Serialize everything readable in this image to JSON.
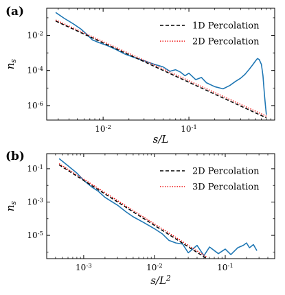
{
  "chart_data": [
    {
      "type": "line",
      "panel_label": "(a)",
      "xlabel": "s/L",
      "ylabel": "n_s",
      "xscale": "log",
      "yscale": "log",
      "xlim": [
        0.0022,
        1.0
      ],
      "ylim": [
        1.5e-07,
        0.35
      ],
      "x_ticks": [
        {
          "value": 0.01,
          "label": "10^{-2}"
        },
        {
          "value": 0.1,
          "label": "10^{-1}"
        }
      ],
      "y_ticks": [
        {
          "value": 0.01,
          "label": "10^{-2}"
        },
        {
          "value": 0.0001,
          "label": "10^{-4}"
        },
        {
          "value": 1e-06,
          "label": "10^{-6}"
        }
      ],
      "legend_position": "top-right",
      "series": [
        {
          "name": "",
          "style": "solid",
          "color": "#1f77b4",
          "x": [
            0.0028,
            0.0035,
            0.0045,
            0.0055,
            0.0065,
            0.0075,
            0.009,
            0.011,
            0.014,
            0.018,
            0.023,
            0.03,
            0.04,
            0.05,
            0.06,
            0.07,
            0.08,
            0.09,
            0.1,
            0.12,
            0.14,
            0.16,
            0.2,
            0.25,
            0.3,
            0.35,
            0.4,
            0.45,
            0.5,
            0.55,
            0.6,
            0.63,
            0.66,
            0.7,
            0.73,
            0.76,
            0.78,
            0.8
          ],
          "y": [
            0.2,
            0.095,
            0.045,
            0.023,
            0.011,
            0.0055,
            0.0038,
            0.0027,
            0.0016,
            0.00085,
            0.00055,
            0.00036,
            0.00022,
            0.00016,
            9e-05,
            0.00011,
            8e-05,
            5e-05,
            7e-05,
            3e-05,
            4e-05,
            2e-05,
            1.2e-05,
            9e-06,
            1.4e-05,
            2.4e-05,
            3.6e-05,
            6e-05,
            0.00011,
            0.0002,
            0.00036,
            0.00048,
            0.00042,
            0.00022,
            5e-05,
            4e-06,
            1e-06,
            3e-07
          ]
        },
        {
          "name": "1D Percolation",
          "style": "dashed",
          "color": "#000000",
          "x": [
            0.0028,
            0.8
          ],
          "y": [
            0.065,
            2e-07
          ]
        },
        {
          "name": "2D Percolation",
          "style": "dotted",
          "color": "#ee1111",
          "x": [
            0.0028,
            0.8
          ],
          "y": [
            0.075,
            2.5e-07
          ]
        }
      ]
    },
    {
      "type": "line",
      "panel_label": "(b)",
      "xlabel": "s/L^2",
      "ylabel": "n_s",
      "xscale": "log",
      "yscale": "log",
      "xlim": [
        0.0003,
        0.5
      ],
      "ylim": [
        4e-07,
        0.8
      ],
      "x_ticks": [
        {
          "value": 0.001,
          "label": "10^{-3}"
        },
        {
          "value": 0.01,
          "label": "10^{-2}"
        },
        {
          "value": 0.1,
          "label": "10^{-1}"
        }
      ],
      "y_ticks": [
        {
          "value": 0.1,
          "label": "10^{-1}"
        },
        {
          "value": 0.001,
          "label": "10^{-3}"
        },
        {
          "value": 1e-05,
          "label": "10^{-5}"
        }
      ],
      "legend_position": "top-right",
      "series": [
        {
          "name": "",
          "style": "solid",
          "color": "#1f77b4",
          "x": [
            0.00045,
            0.0006,
            0.0008,
            0.001,
            0.0013,
            0.0016,
            0.002,
            0.003,
            0.004,
            0.005,
            0.007,
            0.01,
            0.013,
            0.016,
            0.02,
            0.025,
            0.03,
            0.04,
            0.05,
            0.06,
            0.08,
            0.1,
            0.12,
            0.15,
            0.18,
            0.2,
            0.22,
            0.25,
            0.28
          ],
          "y": [
            0.4,
            0.15,
            0.055,
            0.02,
            0.008,
            0.0045,
            0.0019,
            0.00065,
            0.00025,
            0.00013,
            6e-05,
            2.5e-05,
            1.2e-05,
            5e-06,
            3.5e-06,
            3e-06,
            9e-07,
            2.5e-06,
            6e-07,
            2e-06,
            8e-07,
            1.5e-06,
            7e-07,
            1.8e-06,
            2.5e-06,
            3.5e-06,
            1.8e-06,
            2.8e-06,
            1.2e-06
          ]
        },
        {
          "name": "2D Percolation",
          "style": "dashed",
          "color": "#000000",
          "x": [
            0.00045,
            0.055
          ],
          "y": [
            0.17,
            4e-07
          ]
        },
        {
          "name": "3D Percolation",
          "style": "dotted",
          "color": "#ee1111",
          "x": [
            0.00045,
            0.055
          ],
          "y": [
            0.2,
            5e-07
          ]
        }
      ]
    }
  ]
}
